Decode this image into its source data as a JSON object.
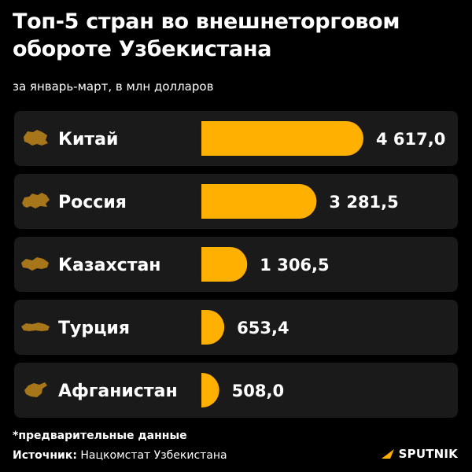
{
  "title": "Топ-5 стран во внешнеторговом обороте Узбекистана",
  "subtitle": "за январь-март, в млн долларов",
  "footnote": "*предварительные данные",
  "source": {
    "label": "Источник:",
    "text": "Нацкомстат Узбекистана"
  },
  "brand": {
    "name": "SPUTNIK",
    "logo_icon": "sputnik-arrow-icon"
  },
  "colors": {
    "background": "#000000",
    "row_background": "#1a1a1a",
    "bar": "#ffb000",
    "map_icon": "#a8761a",
    "text": "#ffffff"
  },
  "chart_data": {
    "type": "bar",
    "orientation": "horizontal",
    "categories": [
      "Китай",
      "Россия",
      "Казахстан",
      "Турция",
      "Афганистан"
    ],
    "values": [
      4617.0,
      3281.5,
      1306.5,
      653.4,
      508.0
    ],
    "value_labels": [
      "4 617,0",
      "3 281,5",
      "1 306,5",
      "653,4",
      "508,0"
    ],
    "category_icons": [
      "china-map-icon",
      "russia-map-icon",
      "kazakhstan-map-icon",
      "turkey-map-icon",
      "afghanistan-map-icon"
    ],
    "units": "млн долларов",
    "grid": false,
    "legend": "none"
  }
}
